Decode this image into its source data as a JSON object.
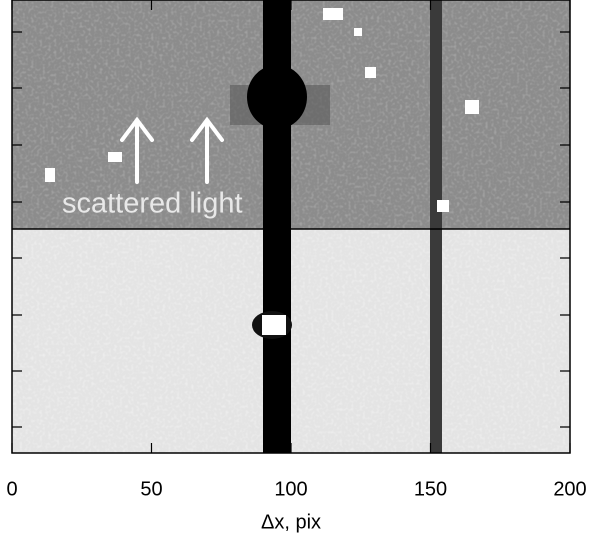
{
  "chart_data": {
    "type": "image",
    "xlabel": "Δx, pix",
    "annotation": "scattered light",
    "xlim": [
      0,
      200
    ],
    "xticks": [
      0,
      50,
      100,
      150,
      200
    ]
  }
}
